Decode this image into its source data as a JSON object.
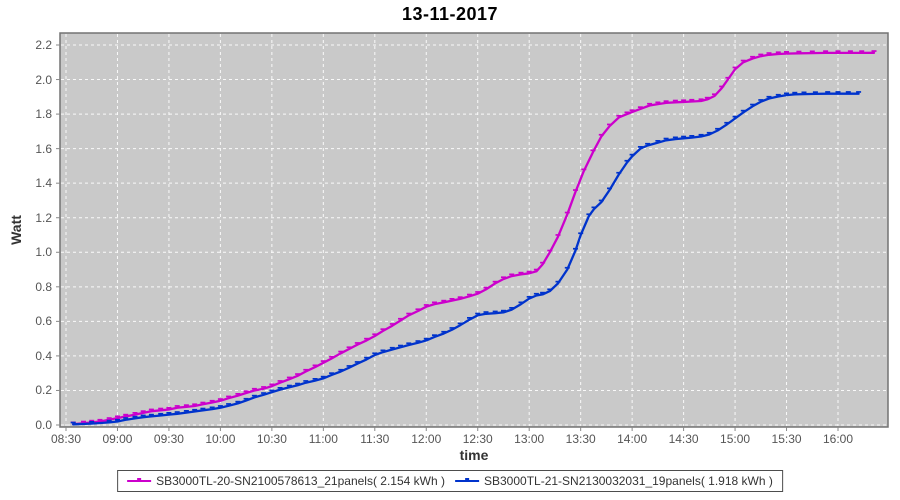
{
  "title": "13-11-2017",
  "colors": {
    "background": "#ffffff",
    "plot_background": "#c9c9c9",
    "plot_border": "#737373",
    "gridline": "#ffffff",
    "tick_label": "#555555",
    "axis_label": "#333333",
    "title": "#000000",
    "series1": "#cc00cc",
    "series2": "#0033cc",
    "legend_border": "#4d4d4d"
  },
  "legend": {
    "items": [
      {
        "label": "SB3000TL-20-SN2100578613_21panels( 2.154 kWh )",
        "color": "#cc00cc"
      },
      {
        "label": "SB3000TL-21-SN2130032031_19panels( 1.918 kWh )",
        "color": "#0033cc"
      }
    ]
  },
  "chart_data": {
    "type": "line",
    "title": "13-11-2017",
    "xlabel": "time",
    "ylabel": "Watt",
    "grid": true,
    "legend_position": "bottom",
    "x_ticks": [
      "08:30",
      "09:00",
      "09:30",
      "10:00",
      "10:30",
      "11:00",
      "11:30",
      "12:00",
      "12:30",
      "13:00",
      "13:30",
      "14:00",
      "14:30",
      "15:00",
      "15:30",
      "16:00"
    ],
    "x_tick_hours": [
      8.5,
      9.0,
      9.5,
      10.0,
      10.5,
      11.0,
      11.5,
      12.0,
      12.5,
      13.0,
      13.5,
      14.0,
      14.5,
      15.0,
      15.5,
      16.0
    ],
    "y_ticks": [
      "0.0",
      "0.2",
      "0.4",
      "0.6",
      "0.8",
      "1.0",
      "1.2",
      "1.4",
      "1.6",
      "1.8",
      "2.0",
      "2.2"
    ],
    "y_tick_values": [
      0.0,
      0.2,
      0.4,
      0.6,
      0.8,
      1.0,
      1.2,
      1.4,
      1.6,
      1.8,
      2.0,
      2.2
    ],
    "xlim_hours": [
      8.44,
      16.49
    ],
    "ylim": [
      0,
      2.27
    ],
    "series": [
      {
        "name": "SB3000TL-20-SN2100578613_21panels( 2.154 kWh )",
        "color": "#cc00cc",
        "total_kwh": 2.154,
        "points": [
          [
            8.57,
            0.005
          ],
          [
            8.67,
            0.01
          ],
          [
            8.75,
            0.015
          ],
          [
            8.83,
            0.02
          ],
          [
            8.92,
            0.03
          ],
          [
            9.0,
            0.04
          ],
          [
            9.08,
            0.05
          ],
          [
            9.17,
            0.06
          ],
          [
            9.25,
            0.07
          ],
          [
            9.33,
            0.08
          ],
          [
            9.42,
            0.085
          ],
          [
            9.5,
            0.09
          ],
          [
            9.58,
            0.1
          ],
          [
            9.67,
            0.105
          ],
          [
            9.75,
            0.11
          ],
          [
            9.83,
            0.12
          ],
          [
            9.92,
            0.13
          ],
          [
            10.0,
            0.14
          ],
          [
            10.08,
            0.155
          ],
          [
            10.17,
            0.17
          ],
          [
            10.25,
            0.185
          ],
          [
            10.33,
            0.2
          ],
          [
            10.42,
            0.21
          ],
          [
            10.5,
            0.225
          ],
          [
            10.58,
            0.245
          ],
          [
            10.67,
            0.265
          ],
          [
            10.75,
            0.285
          ],
          [
            10.83,
            0.31
          ],
          [
            10.92,
            0.335
          ],
          [
            11.0,
            0.36
          ],
          [
            11.08,
            0.385
          ],
          [
            11.17,
            0.415
          ],
          [
            11.25,
            0.44
          ],
          [
            11.33,
            0.465
          ],
          [
            11.42,
            0.49
          ],
          [
            11.5,
            0.515
          ],
          [
            11.58,
            0.545
          ],
          [
            11.67,
            0.575
          ],
          [
            11.75,
            0.605
          ],
          [
            11.83,
            0.635
          ],
          [
            11.92,
            0.66
          ],
          [
            12.0,
            0.685
          ],
          [
            12.08,
            0.7
          ],
          [
            12.17,
            0.71
          ],
          [
            12.25,
            0.72
          ],
          [
            12.33,
            0.73
          ],
          [
            12.42,
            0.745
          ],
          [
            12.5,
            0.76
          ],
          [
            12.58,
            0.785
          ],
          [
            12.67,
            0.82
          ],
          [
            12.75,
            0.845
          ],
          [
            12.83,
            0.862
          ],
          [
            12.92,
            0.872
          ],
          [
            13.0,
            0.878
          ],
          [
            13.07,
            0.89
          ],
          [
            13.13,
            0.93
          ],
          [
            13.2,
            1.0
          ],
          [
            13.28,
            1.09
          ],
          [
            13.37,
            1.22
          ],
          [
            13.45,
            1.35
          ],
          [
            13.53,
            1.47
          ],
          [
            13.62,
            1.58
          ],
          [
            13.7,
            1.67
          ],
          [
            13.78,
            1.73
          ],
          [
            13.87,
            1.78
          ],
          [
            13.95,
            1.8
          ],
          [
            14.0,
            1.812
          ],
          [
            14.08,
            1.83
          ],
          [
            14.17,
            1.85
          ],
          [
            14.25,
            1.858
          ],
          [
            14.33,
            1.865
          ],
          [
            14.42,
            1.868
          ],
          [
            14.5,
            1.87
          ],
          [
            14.58,
            1.873
          ],
          [
            14.67,
            1.876
          ],
          [
            14.73,
            1.885
          ],
          [
            14.8,
            1.905
          ],
          [
            14.87,
            1.95
          ],
          [
            14.93,
            2.0
          ],
          [
            15.0,
            2.06
          ],
          [
            15.08,
            2.1
          ],
          [
            15.17,
            2.122
          ],
          [
            15.25,
            2.135
          ],
          [
            15.33,
            2.143
          ],
          [
            15.42,
            2.148
          ],
          [
            15.5,
            2.15
          ],
          [
            15.62,
            2.152
          ],
          [
            15.75,
            2.153
          ],
          [
            15.88,
            2.154
          ],
          [
            16.0,
            2.154
          ],
          [
            16.12,
            2.154
          ],
          [
            16.23,
            2.154
          ],
          [
            16.35,
            2.155
          ]
        ]
      },
      {
        "name": "SB3000TL-21-SN2130032031_19panels( 1.918 kWh )",
        "color": "#0033cc",
        "total_kwh": 1.918,
        "points": [
          [
            8.57,
            0.004
          ],
          [
            8.75,
            0.008
          ],
          [
            8.92,
            0.015
          ],
          [
            9.0,
            0.02
          ],
          [
            9.08,
            0.03
          ],
          [
            9.17,
            0.038
          ],
          [
            9.25,
            0.045
          ],
          [
            9.33,
            0.05
          ],
          [
            9.42,
            0.055
          ],
          [
            9.5,
            0.06
          ],
          [
            9.58,
            0.065
          ],
          [
            9.67,
            0.072
          ],
          [
            9.75,
            0.078
          ],
          [
            9.83,
            0.085
          ],
          [
            9.92,
            0.092
          ],
          [
            10.0,
            0.1
          ],
          [
            10.08,
            0.112
          ],
          [
            10.17,
            0.125
          ],
          [
            10.25,
            0.142
          ],
          [
            10.33,
            0.16
          ],
          [
            10.42,
            0.175
          ],
          [
            10.5,
            0.19
          ],
          [
            10.58,
            0.205
          ],
          [
            10.67,
            0.218
          ],
          [
            10.75,
            0.23
          ],
          [
            10.83,
            0.245
          ],
          [
            10.92,
            0.257
          ],
          [
            11.0,
            0.27
          ],
          [
            11.08,
            0.29
          ],
          [
            11.17,
            0.31
          ],
          [
            11.25,
            0.332
          ],
          [
            11.33,
            0.355
          ],
          [
            11.42,
            0.38
          ],
          [
            11.5,
            0.405
          ],
          [
            11.58,
            0.422
          ],
          [
            11.67,
            0.437
          ],
          [
            11.75,
            0.45
          ],
          [
            11.83,
            0.463
          ],
          [
            11.92,
            0.476
          ],
          [
            12.0,
            0.49
          ],
          [
            12.08,
            0.51
          ],
          [
            12.17,
            0.53
          ],
          [
            12.25,
            0.552
          ],
          [
            12.33,
            0.578
          ],
          [
            12.42,
            0.61
          ],
          [
            12.5,
            0.635
          ],
          [
            12.58,
            0.644
          ],
          [
            12.67,
            0.647
          ],
          [
            12.75,
            0.652
          ],
          [
            12.83,
            0.668
          ],
          [
            12.92,
            0.7
          ],
          [
            13.0,
            0.732
          ],
          [
            13.07,
            0.75
          ],
          [
            13.13,
            0.756
          ],
          [
            13.2,
            0.775
          ],
          [
            13.28,
            0.82
          ],
          [
            13.37,
            0.9
          ],
          [
            13.45,
            1.01
          ],
          [
            13.5,
            1.1
          ],
          [
            13.58,
            1.21
          ],
          [
            13.63,
            1.25
          ],
          [
            13.7,
            1.29
          ],
          [
            13.78,
            1.36
          ],
          [
            13.87,
            1.45
          ],
          [
            13.95,
            1.52
          ],
          [
            14.0,
            1.555
          ],
          [
            14.08,
            1.6
          ],
          [
            14.15,
            1.618
          ],
          [
            14.25,
            1.635
          ],
          [
            14.33,
            1.648
          ],
          [
            14.42,
            1.655
          ],
          [
            14.5,
            1.66
          ],
          [
            14.58,
            1.664
          ],
          [
            14.67,
            1.67
          ],
          [
            14.75,
            1.682
          ],
          [
            14.83,
            1.705
          ],
          [
            14.92,
            1.74
          ],
          [
            15.0,
            1.775
          ],
          [
            15.08,
            1.81
          ],
          [
            15.17,
            1.845
          ],
          [
            15.25,
            1.872
          ],
          [
            15.33,
            1.89
          ],
          [
            15.42,
            1.902
          ],
          [
            15.5,
            1.91
          ],
          [
            15.58,
            1.914
          ],
          [
            15.67,
            1.916
          ],
          [
            15.78,
            1.917
          ],
          [
            15.9,
            1.918
          ],
          [
            16.0,
            1.918
          ],
          [
            16.1,
            1.918
          ],
          [
            16.2,
            1.918
          ]
        ]
      }
    ]
  }
}
